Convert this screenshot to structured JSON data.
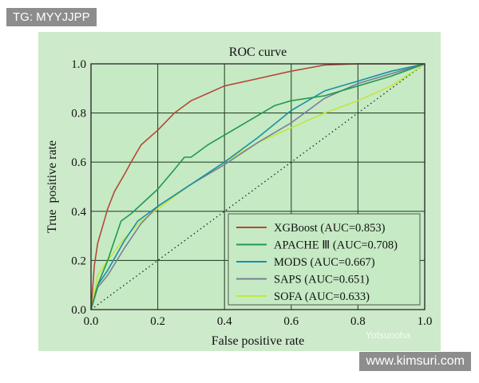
{
  "watermarks": {
    "top_left": "TG: MYYJJPP",
    "bottom_right": "www.kimsuri.com",
    "plot": "Yotsunoha"
  },
  "colors": {
    "panel": "#cdeacb",
    "plot_bg": "#c6eac4",
    "grid": "#2e4a2e"
  },
  "chart_data": {
    "type": "line",
    "title": "ROC curve",
    "xlabel": "False positive rate",
    "ylabel": "True  positive rate",
    "xlim": [
      0,
      1
    ],
    "ylim": [
      0,
      1
    ],
    "xticks": [
      "0.0",
      "0.2",
      "0.4",
      "0.6",
      "0.8",
      "1.0"
    ],
    "yticks": [
      "0.0",
      "0.2",
      "0.4",
      "0.6",
      "0.8",
      "1.0"
    ],
    "grid": true,
    "legend_position": "bottom-right",
    "reference_line": {
      "style": "dotted",
      "x": [
        0,
        1
      ],
      "y": [
        0,
        1
      ]
    },
    "series": [
      {
        "name": "XGBoost (AUC=0.853)",
        "color": "#b5483a",
        "x": [
          0,
          0.01,
          0.02,
          0.05,
          0.07,
          0.1,
          0.12,
          0.15,
          0.2,
          0.25,
          0.3,
          0.35,
          0.4,
          0.5,
          0.6,
          0.7,
          0.8,
          1
        ],
        "y": [
          0,
          0.18,
          0.27,
          0.41,
          0.48,
          0.55,
          0.6,
          0.67,
          0.73,
          0.8,
          0.85,
          0.88,
          0.91,
          0.94,
          0.97,
          0.995,
          1,
          1
        ]
      },
      {
        "name": "APACHE Ⅲ (AUC=0.708)",
        "color": "#1f9a4e",
        "x": [
          0,
          0.02,
          0.05,
          0.09,
          0.12,
          0.16,
          0.2,
          0.25,
          0.28,
          0.3,
          0.35,
          0.4,
          0.5,
          0.55,
          0.6,
          0.7,
          0.8,
          0.9,
          1
        ],
        "y": [
          0,
          0.1,
          0.2,
          0.36,
          0.39,
          0.44,
          0.49,
          0.57,
          0.62,
          0.62,
          0.67,
          0.71,
          0.79,
          0.83,
          0.85,
          0.87,
          0.91,
          0.95,
          1
        ]
      },
      {
        "name": "MODS (AUC=0.667)",
        "color": "#1a8fa8",
        "x": [
          0,
          0.02,
          0.05,
          0.1,
          0.14,
          0.2,
          0.3,
          0.4,
          0.5,
          0.6,
          0.7,
          0.8,
          0.9,
          1
        ],
        "y": [
          0,
          0.1,
          0.16,
          0.28,
          0.36,
          0.42,
          0.51,
          0.6,
          0.7,
          0.81,
          0.89,
          0.93,
          0.97,
          1
        ]
      },
      {
        "name": "SAPS (AUC=0.651)",
        "color": "#7a7f96",
        "x": [
          0,
          0.02,
          0.05,
          0.1,
          0.15,
          0.2,
          0.3,
          0.4,
          0.5,
          0.6,
          0.7,
          0.8,
          0.9,
          1
        ],
        "y": [
          0,
          0.09,
          0.14,
          0.25,
          0.35,
          0.42,
          0.51,
          0.59,
          0.68,
          0.76,
          0.86,
          0.92,
          0.96,
          1
        ]
      },
      {
        "name": "SOFA (AUC=0.633)",
        "color": "#c4e63a",
        "x": [
          0,
          0.02,
          0.05,
          0.1,
          0.15,
          0.2,
          0.3,
          0.4,
          0.5,
          0.6,
          0.7,
          0.8,
          0.9,
          1
        ],
        "y": [
          0,
          0.14,
          0.2,
          0.29,
          0.36,
          0.41,
          0.51,
          0.6,
          0.68,
          0.74,
          0.8,
          0.85,
          0.91,
          1
        ]
      }
    ]
  }
}
